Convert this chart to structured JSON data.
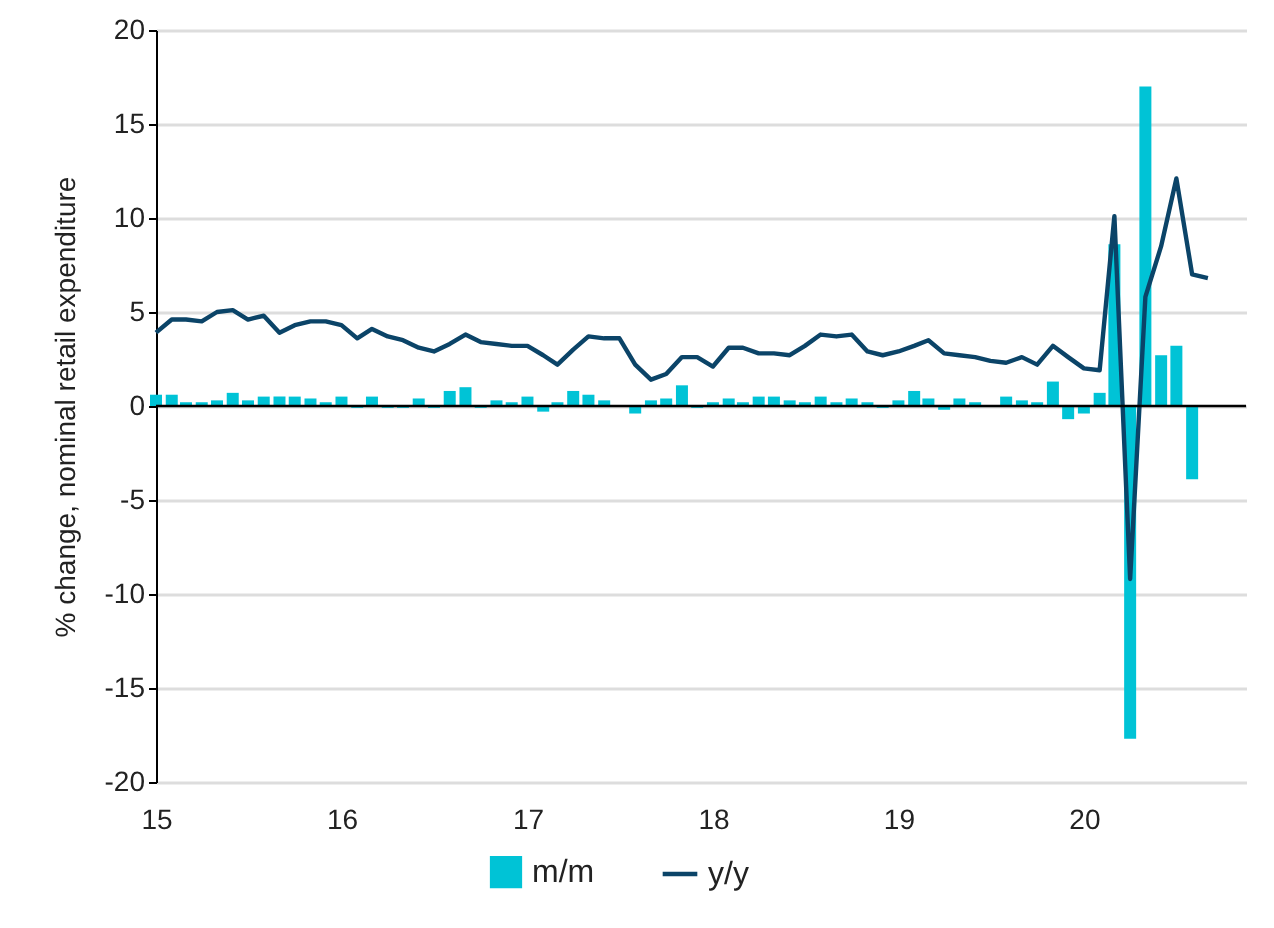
{
  "chart_data": {
    "type": "bar",
    "ylabel": "% change, nominal retail expenditure",
    "x": [
      "2015-01-01",
      "2015-02-01",
      "2015-03-01",
      "2015-04-01",
      "2015-05-01",
      "2015-06-01",
      "2015-07-01",
      "2015-08-01",
      "2015-09-01",
      "2015-10-01",
      "2015-11-01",
      "2015-12-01",
      "2016-01-01",
      "2016-02-01",
      "2016-03-01",
      "2016-04-01",
      "2016-05-01",
      "2016-06-01",
      "2016-07-01",
      "2016-08-01",
      "2016-09-01",
      "2016-10-01",
      "2016-11-01",
      "2016-12-01",
      "2017-01-01",
      "2017-02-01",
      "2017-03-01",
      "2017-04-01",
      "2017-05-01",
      "2017-06-01",
      "2017-07-01",
      "2017-08-01",
      "2017-09-01",
      "2017-10-01",
      "2017-11-01",
      "2017-12-01",
      "2018-01-01",
      "2018-02-01",
      "2018-03-01",
      "2018-04-01",
      "2018-05-01",
      "2018-06-01",
      "2018-07-01",
      "2018-08-01",
      "2018-09-01",
      "2018-10-01",
      "2018-11-01",
      "2018-12-01",
      "2019-01-01",
      "2019-02-01",
      "2019-03-01",
      "2019-04-01",
      "2019-05-01",
      "2019-06-01",
      "2019-07-01",
      "2019-08-01",
      "2019-09-01",
      "2019-10-01",
      "2019-11-01",
      "2019-12-01",
      "2020-01-01",
      "2020-02-01",
      "2020-03-01",
      "2020-04-01",
      "2020-05-01",
      "2020-06-01",
      "2020-07-01",
      "2020-08-01",
      "2020-09-01"
    ],
    "series": [
      {
        "name": "m/m",
        "color": "#00c3d6",
        "values": [
          0.6,
          0.6,
          0.2,
          0.2,
          0.3,
          0.7,
          0.3,
          0.5,
          0.5,
          0.5,
          0.4,
          0.2,
          0.5,
          -0.1,
          0.5,
          -0.1,
          -0.1,
          0.4,
          -0.1,
          0.8,
          1.0,
          -0.1,
          0.3,
          0.2,
          0.5,
          -0.3,
          0.2,
          0.8,
          0.6,
          0.3,
          0,
          -0.4,
          0.3,
          0.4,
          1.1,
          -0.1,
          0.2,
          0.4,
          0.2,
          0.5,
          0.5,
          0.3,
          0.2,
          0.5,
          0.2,
          0.4,
          0.2,
          -0.1,
          0.3,
          0.8,
          0.4,
          -0.2,
          0.4,
          0.2,
          0,
          0.5,
          0.3,
          0.2,
          1.3,
          -0.7,
          -0.4,
          0.7,
          8.6,
          -17.7,
          17.0,
          2.7,
          3.2,
          -3.9,
          null
        ]
      },
      {
        "name": "y/y",
        "type": "line",
        "color": "#0b4468",
        "values": [
          3.9,
          4.6,
          4.6,
          4.5,
          5.0,
          5.1,
          4.6,
          4.8,
          3.9,
          4.3,
          4.5,
          4.5,
          4.3,
          3.6,
          4.1,
          3.7,
          3.5,
          3.1,
          2.9,
          3.3,
          3.8,
          3.4,
          3.3,
          3.2,
          3.2,
          2.7,
          2.2,
          3.0,
          3.7,
          3.6,
          3.6,
          2.2,
          1.4,
          1.7,
          2.6,
          2.6,
          2.1,
          3.1,
          3.1,
          2.8,
          2.8,
          2.7,
          3.2,
          3.8,
          3.7,
          3.8,
          2.9,
          2.7,
          2.9,
          3.2,
          3.5,
          2.8,
          2.7,
          2.6,
          2.4,
          2.3,
          2.6,
          2.2,
          3.2,
          2.6,
          2.0,
          1.9,
          10.1,
          -9.2,
          5.8,
          8.5,
          12.1,
          7.0,
          6.8
        ]
      }
    ],
    "xlim": [
      "2015-01-01",
      "2020-11-15"
    ],
    "xticks": [
      {
        "value": "2015-01-01",
        "label": "15"
      },
      {
        "value": "2016-01-01",
        "label": "16"
      },
      {
        "value": "2017-01-01",
        "label": "17"
      },
      {
        "value": "2018-01-01",
        "label": "18"
      },
      {
        "value": "2019-01-01",
        "label": "19"
      },
      {
        "value": "2020-01-01",
        "label": "20"
      }
    ],
    "ylim": [
      -20,
      20
    ],
    "yticks": [
      -20,
      -15,
      -10,
      -5,
      0,
      5,
      10,
      15,
      20
    ],
    "ref_lines": [
      {
        "axis": "y",
        "value": 0,
        "color": "#000000"
      }
    ],
    "grid": "y",
    "legend": "bottom"
  }
}
